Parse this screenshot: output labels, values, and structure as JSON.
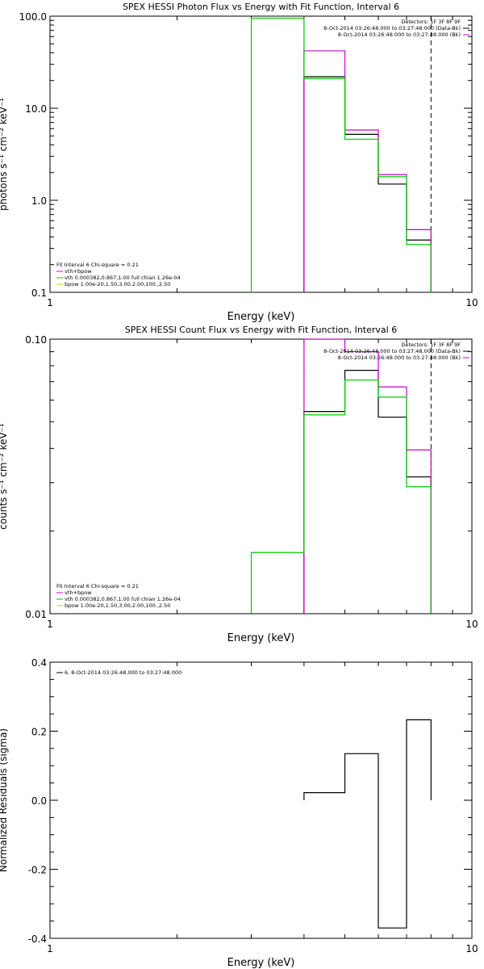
{
  "colors": {
    "data": "#000000",
    "total": "#cc00cc",
    "vth": "#00cc00",
    "bpow": "#cccc00"
  },
  "chart_data": [
    {
      "type": "line",
      "title": "SPEX HESSI Photon Flux vs Energy with Fit Function, Interval 6",
      "xlabel": "Energy (keV)",
      "ylabel": "photons s⁻¹ cm⁻² keV⁻¹",
      "xscale": "log",
      "yscale": "log",
      "xlim": [
        1,
        10
      ],
      "ylim": [
        0.1,
        100
      ],
      "xticks": [
        "1",
        "10"
      ],
      "yticks": [
        "0.1",
        "1.0",
        "10.0",
        "100.0"
      ],
      "info": [
        "Detectors: 1F 3F 8F 9F",
        "8-Oct-2014 03:26:48.000 to 03:27:48.000 (Data-Bk)",
        "8-Oct-2014 03:26:48.000 to 03:27:48.000 (Bk)"
      ],
      "legend": [
        "Fit Interval  6   Chi-square = 0.21",
        "vth+bpow",
        "vth 0.000382,0.867,1.00  full chian 1.26e-04",
        "bpow 1.00e-20,1.50,3.00,2.00,100.,2.50"
      ],
      "bin_edges": [
        3.0,
        4.0,
        5.0,
        6.0,
        7.0,
        8.0
      ],
      "series": [
        {
          "name": "data",
          "color": "black",
          "values": [
            null,
            22,
            5.2,
            1.5,
            0.37
          ]
        },
        {
          "name": "vth+bpow",
          "color": "magenta",
          "values": [
            null,
            42,
            5.8,
            1.9,
            0.48
          ]
        },
        {
          "name": "vth",
          "color": "green",
          "values": [
            95,
            21,
            4.6,
            1.8,
            0.33
          ]
        }
      ],
      "vlines": [
        {
          "x": 4.0,
          "color": "magenta",
          "style": "dotted"
        },
        {
          "x": 8.0,
          "color": "black",
          "style": "dashed"
        }
      ]
    },
    {
      "type": "line",
      "title": "SPEX HESSI Count Flux vs Energy with Fit Function, Interval 6",
      "xlabel": "Energy (keV)",
      "ylabel": "counts s⁻¹ cm⁻² keV⁻¹",
      "xscale": "log",
      "yscale": "log",
      "xlim": [
        1,
        10
      ],
      "ylim": [
        0.01,
        0.1
      ],
      "xticks": [
        "1",
        "10"
      ],
      "yticks": [
        "0.01",
        "0.10"
      ],
      "info": [
        "Detectors: 1F 3F 8F 9F",
        "8-Oct-2014 03:26:48.000 to 03:27:48.000 (Data-Bk)",
        "8-Oct-2014 03:26:48.000 to 03:27:48.000 (Bk)"
      ],
      "legend": [
        "Fit Interval  6   Chi-square = 0.21",
        "vth+bpow",
        "vth 0.000382,0.867,1.00  full chian 1.26e-04",
        "bpow 1.00e-20,1.50,3.00,2.00,100.,2.50"
      ],
      "bin_edges": [
        3.0,
        4.0,
        5.0,
        6.0,
        7.0,
        8.0
      ],
      "series": [
        {
          "name": "data",
          "color": "black",
          "values": [
            null,
            0.0545,
            0.077,
            0.052,
            0.0315
          ]
        },
        {
          "name": "vth+bpow",
          "color": "magenta",
          "values": [
            null,
            0.1,
            0.09,
            0.067,
            0.0395
          ]
        },
        {
          "name": "vth",
          "color": "green",
          "values": [
            0.0167,
            0.053,
            0.071,
            0.0615,
            0.029
          ]
        }
      ],
      "vlines": [
        {
          "x": 4.0,
          "color": "magenta",
          "style": "dotted"
        },
        {
          "x": 8.0,
          "color": "black",
          "style": "dashed"
        }
      ]
    },
    {
      "type": "line",
      "title": "",
      "xlabel": "Energy (keV)",
      "ylabel": "Normalized Residuals (sigma)",
      "xscale": "log",
      "yscale": "linear",
      "xlim": [
        1,
        10
      ],
      "ylim": [
        -0.4,
        0.4
      ],
      "xticks": [
        "1",
        "10"
      ],
      "yticks": [
        "-0.4",
        "-0.2",
        "0.0",
        "0.2",
        "0.4"
      ],
      "legend": [
        "6.  8-Oct-2014 03:26:48.000 to 03:27:48.000"
      ],
      "bin_edges": [
        4.0,
        5.0,
        6.0,
        7.0,
        8.0
      ],
      "series": [
        {
          "name": "residuals",
          "color": "black",
          "values": [
            0.022,
            0.135,
            -0.37,
            0.233
          ]
        }
      ]
    }
  ]
}
